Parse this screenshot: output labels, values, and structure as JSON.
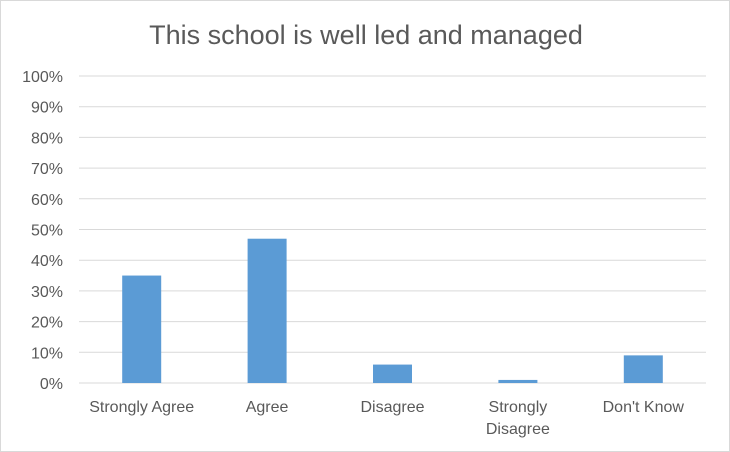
{
  "chart_data": {
    "type": "bar",
    "title": "This school is well led and managed",
    "xlabel": "",
    "ylabel": "",
    "categories": [
      [
        "Strongly Agree"
      ],
      [
        "Agree"
      ],
      [
        "Disagree"
      ],
      [
        "Strongly",
        "Disagree"
      ],
      [
        "Don't Know"
      ]
    ],
    "values": [
      35,
      47,
      6,
      1,
      9
    ],
    "y_unit": "%",
    "ylim": [
      0,
      100
    ],
    "y_ticks": [
      "0%",
      "10%",
      "20%",
      "30%",
      "40%",
      "50%",
      "60%",
      "70%",
      "80%",
      "90%",
      "100%"
    ],
    "grid": true,
    "legend": "none",
    "bar_color": "#5b9bd5"
  }
}
